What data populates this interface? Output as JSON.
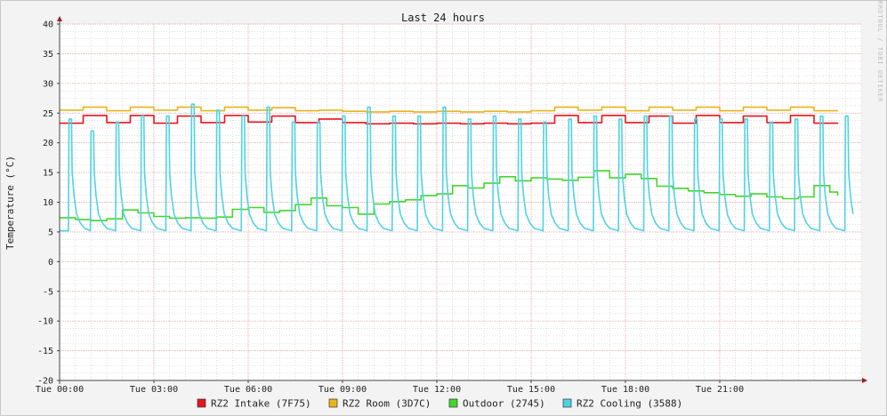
{
  "chart_data": {
    "type": "line",
    "title": "Last 24 hours",
    "ylabel": "Temperature (°C)",
    "xlabel": "",
    "watermark": "RRDTOOL / TOBI OETIKER",
    "ylim": [
      -20,
      40
    ],
    "y_ticks": [
      40,
      35,
      30,
      25,
      20,
      15,
      10,
      5,
      0,
      -5,
      -10,
      -15,
      -20
    ],
    "y_tick_labels": [
      "40",
      "35",
      "30",
      "25",
      "20",
      "15",
      "10",
      "5",
      "0",
      "-5",
      "-10",
      "-15",
      "-20"
    ],
    "x_range_hours": [
      0,
      25.5
    ],
    "x_ticks": [
      0,
      3,
      6,
      9,
      12,
      15,
      18,
      21
    ],
    "x_tick_labels": [
      "Tue 00:00",
      "Tue 03:00",
      "Tue 06:00",
      "Tue 09:00",
      "Tue 12:00",
      "Tue 15:00",
      "Tue 18:00",
      "Tue 21:00"
    ],
    "grid": true,
    "legend_position": "bottom",
    "series": [
      {
        "name": "RZ2 Intake (7F75)",
        "color": "#e8141c",
        "x": [
          0,
          0.75,
          1.5,
          2.25,
          3,
          3.75,
          4.5,
          5.25,
          6,
          6.75,
          7.5,
          8.25,
          9,
          9.75,
          10.5,
          11.25,
          12,
          12.75,
          13.5,
          14.25,
          15,
          15.75,
          16.5,
          17.25,
          18,
          18.75,
          19.5,
          20.25,
          21,
          21.75,
          22.5,
          23.25,
          24,
          24.75
        ],
        "values": [
          23.3,
          24.6,
          23.4,
          24.6,
          23.3,
          24.5,
          23.4,
          24.6,
          23.5,
          24.5,
          23.4,
          24.0,
          23.4,
          23.2,
          23.3,
          23.2,
          23.3,
          23.2,
          23.3,
          23.2,
          23.3,
          24.6,
          23.4,
          24.6,
          23.4,
          24.5,
          23.3,
          24.6,
          23.4,
          24.5,
          23.4,
          24.6,
          23.3,
          23.2
        ]
      },
      {
        "name": "RZ2 Room (3D7C)",
        "color": "#e8b51c",
        "x": [
          0,
          0.75,
          1.5,
          2.25,
          3,
          3.75,
          4.5,
          5.25,
          6,
          6.75,
          7.5,
          8.25,
          9,
          9.75,
          10.5,
          11.25,
          12,
          12.75,
          13.5,
          14.25,
          15,
          15.75,
          16.5,
          17.25,
          18,
          18.75,
          19.5,
          20.25,
          21,
          21.75,
          22.5,
          23.25,
          24,
          24.75
        ],
        "values": [
          25.5,
          26.0,
          25.4,
          26.0,
          25.5,
          26.0,
          25.4,
          26.0,
          25.5,
          25.9,
          25.4,
          25.5,
          25.3,
          25.2,
          25.3,
          25.2,
          25.3,
          25.2,
          25.3,
          25.2,
          25.4,
          26.0,
          25.5,
          26.0,
          25.4,
          26.0,
          25.5,
          26.0,
          25.4,
          26.0,
          25.5,
          26.0,
          25.4,
          25.5
        ]
      },
      {
        "name": "Outdoor (2745)",
        "color": "#44d62c",
        "x": [
          0,
          0.5,
          1,
          1.5,
          2,
          2.5,
          3,
          3.5,
          4,
          4.5,
          5,
          5.5,
          6,
          6.5,
          7,
          7.5,
          8,
          8.5,
          9,
          9.5,
          10,
          10.5,
          11,
          11.5,
          12,
          12.5,
          13,
          13.5,
          14,
          14.5,
          15,
          15.5,
          16,
          16.5,
          17,
          17.5,
          18,
          18.5,
          19,
          19.5,
          20,
          20.5,
          21,
          21.5,
          22,
          22.5,
          23,
          23.5,
          24,
          24.5,
          24.75
        ],
        "values": [
          7.4,
          7.1,
          6.9,
          7.2,
          8.7,
          8.2,
          7.6,
          7.3,
          7.4,
          7.3,
          7.5,
          8.8,
          9.1,
          8.3,
          8.6,
          9.6,
          10.7,
          9.4,
          9.1,
          8.0,
          9.7,
          10.1,
          10.4,
          11.1,
          11.4,
          12.8,
          12.4,
          13.2,
          14.3,
          13.6,
          14.1,
          13.9,
          13.7,
          14.2,
          15.3,
          14.1,
          14.7,
          14.0,
          12.7,
          12.3,
          11.9,
          11.6,
          11.3,
          11.0,
          11.4,
          10.9,
          10.6,
          10.9,
          12.8,
          11.7,
          11.1
        ]
      },
      {
        "name": "RZ2 Cooling (3588)",
        "color": "#4fd3e3",
        "spike_x": [
          0.3,
          1,
          1.8,
          2.6,
          3.4,
          4.2,
          5,
          5.8,
          6.6,
          7.4,
          8.2,
          9,
          9.8,
          10.6,
          11.4,
          12.2,
          13,
          13.8,
          14.6,
          15.4,
          16.2,
          17,
          17.8,
          18.6,
          19.4,
          20.2,
          21,
          21.8,
          22.6,
          23.4,
          24.2,
          25
        ],
        "spike_peak": [
          24.0,
          22.0,
          23.5,
          24.5,
          24.5,
          26.5,
          25.5,
          24.5,
          26.0,
          23.5,
          23.5,
          24.5,
          26.0,
          24.5,
          24.5,
          26.0,
          24.0,
          24.5,
          24.0,
          23.5,
          24.0,
          24.5,
          24.0,
          24.5,
          24.5,
          24.0,
          24.0,
          24.0,
          23.5,
          24.0,
          24.5,
          24.5
        ],
        "baseline": 5.2
      }
    ]
  }
}
